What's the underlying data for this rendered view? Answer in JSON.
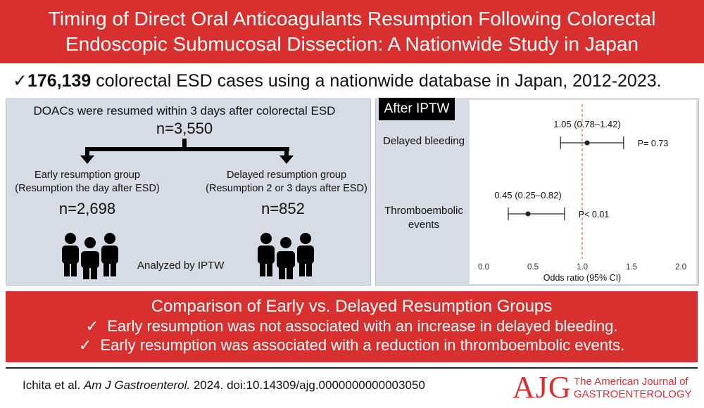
{
  "title": {
    "line1": "Timing of Direct Oral Anticoagulants Resumption Following Colorectal",
    "line2": "Endoscopic Submucosal Dissection: A Nationwide Study in Japan"
  },
  "cases": {
    "check": "✓",
    "count": "176,139",
    "text": " colorectal ESD cases using a nationwide database in Japan, 2012-2023."
  },
  "design": {
    "heading": "DOACs were resumed within 3 days after colorectal ESD",
    "total": "n=3,550",
    "early": {
      "label1": "Early resumption group",
      "label2": "(Resumption the day after ESD)",
      "n": "n=2,698",
      "icon": "people-group-icon"
    },
    "delayed": {
      "label1": "Delayed resumption group",
      "label2": "(Resumption 2 or 3 days after ESD)",
      "n": "n=852",
      "icon": "people-group-icon"
    },
    "method": "Analyzed by IPTW"
  },
  "forest": {
    "tag": "After IPTW",
    "row1_label": "Delayed bleeding",
    "row2_label_1": "Thromboembolic",
    "row2_label_2": "events",
    "row1_ci_text": "1.05 (0.78–1.42)",
    "row2_ci_text": "0.45 (0.25–0.82)",
    "row1_p": "P= 0.73",
    "row2_p": "P< 0.01",
    "xlabel": "Odds ratio (95% CI)"
  },
  "chart_data": {
    "type": "scatter",
    "categories": [
      "Delayed bleeding",
      "Thromboembolic events"
    ],
    "series": [
      {
        "values": [
          1.05,
          0.45
        ],
        "lower": [
          0.78,
          0.25
        ],
        "upper": [
          1.42,
          0.82
        ]
      }
    ],
    "p_values": [
      "P= 0.73",
      "P< 0.01"
    ],
    "xlabel": "Odds ratio (95% CI)",
    "xlim": [
      0.0,
      2.0
    ],
    "xticks": [
      "0.0",
      "0.5",
      "1.0",
      "1.5",
      "2.0"
    ],
    "reference_line": 1.0,
    "grid": false,
    "colors": {
      "reference": "#c7764f",
      "marks": "#222222"
    }
  },
  "summary": {
    "heading": "Comparison of Early vs. Delayed Resumption Groups",
    "check": "✓",
    "point1": "Early resumption was not associated with an increase in delayed bleeding.",
    "point2": "Early resumption was associated with a reduction in thromboembolic events."
  },
  "citation": {
    "authors": "Ichita et al. ",
    "journal": "Am J Gastroenterol.",
    "rest": " 2024. doi:10.14309/ajg.0000000000003050"
  },
  "logo": {
    "mark": "AJG",
    "line1": "The American Journal of",
    "line2": "GASTROENTEROLOGY"
  },
  "colors": {
    "accent": "#d8302f",
    "panel": "#d6dce5"
  }
}
